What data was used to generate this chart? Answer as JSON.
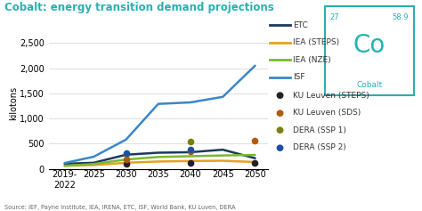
{
  "title": "Cobalt: energy transition demand projections",
  "ylabel": "kilotons",
  "source": "Source: IEF, Payne Institute, IEA, IRENA, ETC, ISF, World Bank, KU Luven, DERA",
  "x_labels": [
    "2019-\n2022",
    "2025",
    "2030",
    "2035",
    "2040",
    "2045",
    "2050"
  ],
  "x_values": [
    2020.5,
    2025,
    2030,
    2035,
    2040,
    2045,
    2050
  ],
  "lines": {
    "ETC": {
      "x": [
        2020.5,
        2025,
        2030,
        2035,
        2040,
        2045,
        2050
      ],
      "y": [
        100,
        120,
        280,
        320,
        330,
        380,
        210
      ],
      "color": "#1a3a5c",
      "linewidth": 1.8
    },
    "IEA (STEPS)": {
      "x": [
        2020.5,
        2025,
        2030,
        2035,
        2040,
        2045,
        2050
      ],
      "y": [
        60,
        75,
        120,
        145,
        155,
        160,
        135
      ],
      "color": "#e8a020",
      "linewidth": 1.8
    },
    "IEA (NZE)": {
      "x": [
        2020.5,
        2025,
        2030,
        2035,
        2040,
        2045,
        2050
      ],
      "y": [
        60,
        95,
        185,
        235,
        250,
        265,
        275
      ],
      "color": "#7bb832",
      "linewidth": 1.8
    },
    "ISF": {
      "x": [
        2020.5,
        2025,
        2030,
        2035,
        2040,
        2045,
        2050
      ],
      "y": [
        115,
        240,
        580,
        1290,
        1320,
        1430,
        2050
      ],
      "color": "#3a87c8",
      "linewidth": 1.8
    }
  },
  "scatter": {
    "KU Leuven (STEPS)": {
      "x": [
        2030,
        2040,
        2050
      ],
      "y": [
        100,
        110,
        120
      ],
      "color": "#222222",
      "marker": "o",
      "size": 20
    },
    "KU Leuven (SDS)": {
      "x": [
        2030,
        2040,
        2050
      ],
      "y": [
        185,
        355,
        555
      ],
      "color": "#b05a10",
      "marker": "o",
      "size": 20
    },
    "DERA (SSP 1)": {
      "x": [
        2030,
        2040
      ],
      "y": [
        290,
        540
      ],
      "color": "#7a8010",
      "marker": "o",
      "size": 20
    },
    "DERA (SSP 2)": {
      "x": [
        2030,
        2040
      ],
      "y": [
        305,
        375
      ],
      "color": "#2050a0",
      "marker": "o",
      "size": 20
    }
  },
  "ylim": [
    0,
    2600
  ],
  "yticks": [
    0,
    500,
    1000,
    1500,
    2000,
    2500
  ],
  "element": {
    "symbol": "Co",
    "name": "Cobalt",
    "number": "27",
    "mass": "58.9",
    "border_color": "#28b0b0",
    "text_color": "#28b0b0"
  },
  "title_color": "#28b0b0",
  "background_color": "#ffffff",
  "title_fontsize": 8.5,
  "axis_fontsize": 7,
  "legend_fontsize": 6.5
}
